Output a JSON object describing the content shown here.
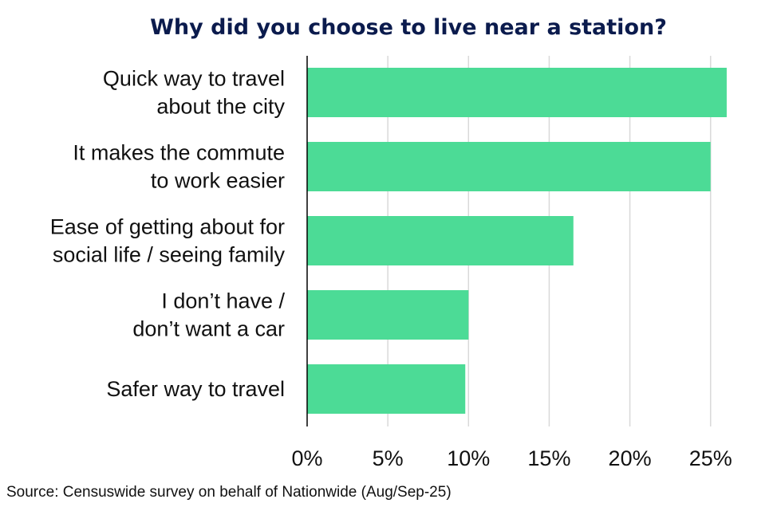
{
  "chart_data": {
    "type": "bar",
    "orientation": "horizontal",
    "title": "Why did you choose to live near a station?",
    "categories": [
      [
        "Quick way to travel",
        "about the city"
      ],
      [
        "It makes the commute",
        "to work easier"
      ],
      [
        "Ease of getting about for",
        "social life / seeing family"
      ],
      [
        "I don’t have /",
        "don’t want a car"
      ],
      [
        "Safer way to travel"
      ]
    ],
    "values": [
      26,
      25,
      16.5,
      10,
      9.8
    ],
    "x_ticks": [
      "0%",
      "5%",
      "10%",
      "15%",
      "20%",
      "25%"
    ],
    "x_tick_values": [
      0,
      5,
      10,
      15,
      20,
      25
    ],
    "xlim": [
      0,
      26.2
    ],
    "grid": true,
    "bar_color": "#4cdb96",
    "source": "Source: Censuswide survey on behalf of Nationwide (Aug/Sep-25)"
  },
  "colors": {
    "title": "#0b1b4d",
    "text": "#111111",
    "grid": "#d9d9d9",
    "bar": "#4cdb96"
  }
}
